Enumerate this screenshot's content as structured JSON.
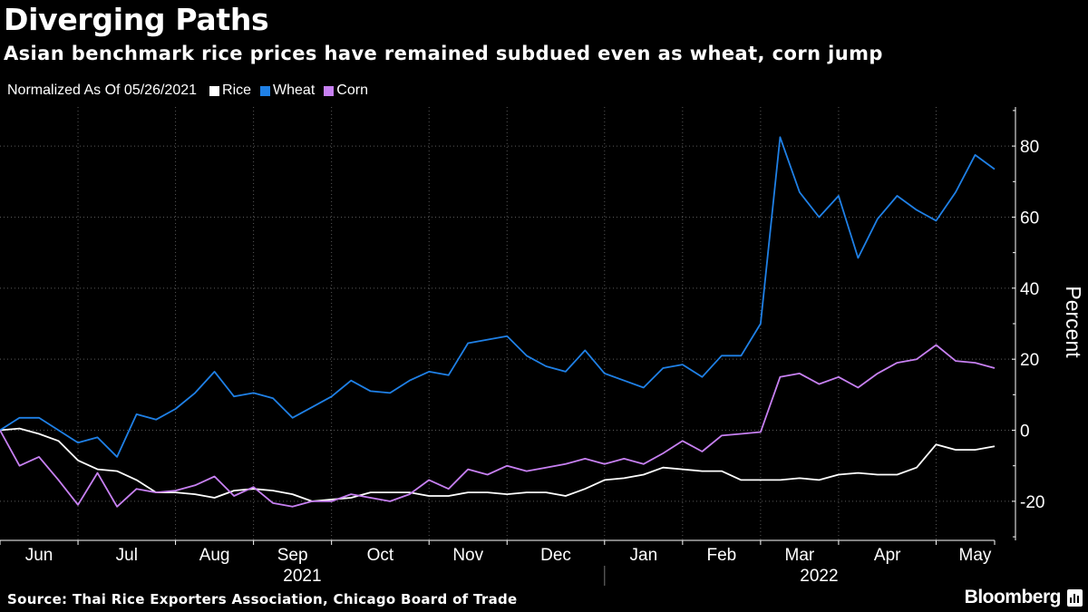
{
  "header": {
    "title": "Diverging Paths",
    "subtitle": "Asian benchmark rice prices have remained subdued even as wheat, corn jump"
  },
  "legend": {
    "note": "Normalized As Of 05/26/2021",
    "items": [
      {
        "label": "Rice",
        "color": "#ffffff"
      },
      {
        "label": "Wheat",
        "color": "#1f80e6"
      },
      {
        "label": "Corn",
        "color": "#c780f2"
      }
    ]
  },
  "footer": {
    "source": "Source: Thai Rice Exporters Association, Chicago Board of Trade",
    "brand": "Bloomberg"
  },
  "chart_data": {
    "type": "line",
    "title": "Diverging Paths",
    "subtitle": "Asian benchmark rice prices have remained subdued even as wheat, corn jump",
    "ylabel": "Percent",
    "ylim": [
      -31,
      91
    ],
    "yticks": [
      -20,
      0,
      20,
      40,
      60,
      80
    ],
    "xlim": [
      0,
      51
    ],
    "x_unit": "weeks since 05/26/2021",
    "month_labels": [
      {
        "label": "Jun",
        "x": 2.0
      },
      {
        "label": "Jul",
        "x": 6.5
      },
      {
        "label": "Aug",
        "x": 11.0
      },
      {
        "label": "Sep",
        "x": 15.0
      },
      {
        "label": "Oct",
        "x": 19.5
      },
      {
        "label": "Nov",
        "x": 24.0
      },
      {
        "label": "Dec",
        "x": 28.5
      },
      {
        "label": "Jan",
        "x": 33.0
      },
      {
        "label": "Feb",
        "x": 37.0
      },
      {
        "label": "Mar",
        "x": 41.0
      },
      {
        "label": "Apr",
        "x": 45.5
      },
      {
        "label": "May",
        "x": 50.0
      }
    ],
    "month_boundaries": [
      0,
      4,
      9,
      13,
      17,
      22,
      26,
      31,
      35,
      39,
      43,
      48
    ],
    "years": [
      {
        "label": "2021",
        "x": 15.5
      },
      {
        "label": "2022",
        "x": 42.0
      }
    ],
    "year_boundary": 31,
    "grid": true,
    "legend_position": "top-left",
    "series": [
      {
        "name": "Rice",
        "color": "#ffffff",
        "values": [
          0,
          0.5,
          -1,
          -3,
          -8.5,
          -11,
          -11.5,
          -14,
          -17.5,
          -17.5,
          -18,
          -19,
          -17,
          -16.5,
          -17,
          -18,
          -20,
          -19.5,
          -19,
          -17.5,
          -17.5,
          -17.5,
          -18.5,
          -18.5,
          -17.5,
          -17.5,
          -18,
          -17.5,
          -17.5,
          -18.5,
          -16.5,
          -14,
          -13.5,
          -12.5,
          -10.5,
          -11,
          -11.5,
          -11.5,
          -14,
          -14,
          -14,
          -13.5,
          -14,
          -12.5,
          -12,
          -12.5,
          -12.5,
          -10.5,
          -4,
          -5.5,
          -5.5,
          -4.5
        ]
      },
      {
        "name": "Wheat",
        "color": "#1f80e6",
        "values": [
          0,
          3.5,
          3.5,
          0,
          -3.5,
          -2,
          -7.5,
          4.5,
          3,
          6,
          10.5,
          16.5,
          9.5,
          10.5,
          9,
          3.5,
          6.5,
          9.5,
          14,
          11,
          10.5,
          14,
          16.5,
          15.5,
          24.5,
          25.5,
          26.5,
          21,
          18,
          16.5,
          22.5,
          16,
          14,
          12,
          17.5,
          18.5,
          15,
          21,
          21,
          30,
          82.5,
          67,
          60,
          66,
          48.5,
          59.5,
          66,
          62,
          59,
          67,
          77.5,
          73.5
        ]
      },
      {
        "name": "Corn",
        "color": "#c780f2",
        "values": [
          0,
          -10,
          -7.5,
          -14,
          -21,
          -12,
          -21.5,
          -16.5,
          -17.5,
          -17,
          -15.5,
          -13,
          -18.5,
          -16,
          -20.5,
          -21.5,
          -20,
          -20,
          -18,
          -19,
          -20,
          -18,
          -14,
          -16.5,
          -11,
          -12.5,
          -10,
          -11.5,
          -10.5,
          -9.5,
          -8,
          -9.5,
          -8,
          -9.5,
          -6.5,
          -3,
          -6,
          -1.5,
          -1,
          -0.5,
          15,
          16,
          13,
          15,
          12,
          16,
          19,
          20,
          24,
          19.5,
          19,
          17.5
        ]
      }
    ]
  }
}
